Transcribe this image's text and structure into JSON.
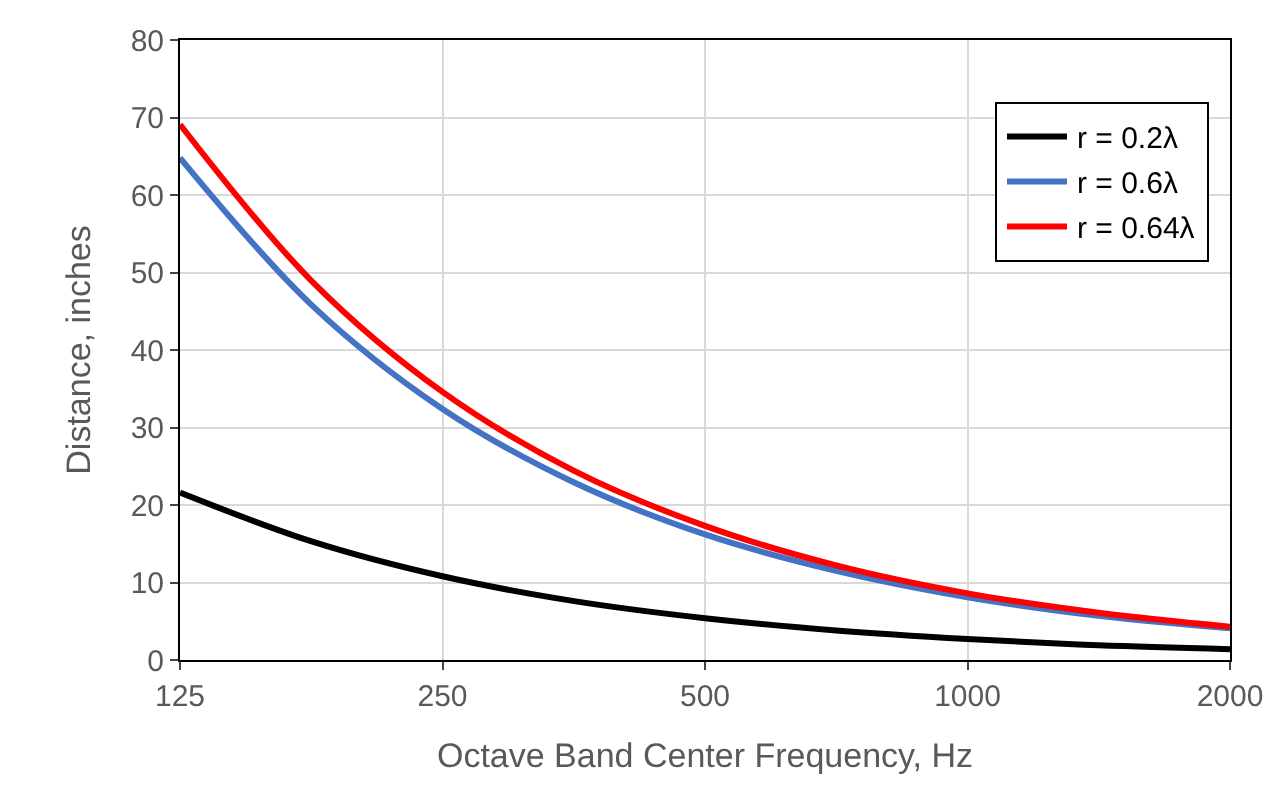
{
  "chart_data": {
    "type": "line",
    "xlabel": "Octave Band Center Frequency, Hz",
    "ylabel": "Distance, inches",
    "x": [
      125,
      177,
      250,
      354,
      500,
      707,
      1000,
      1414,
      2000
    ],
    "series": [
      {
        "name": "r = 0.2λ",
        "color": "#000000",
        "values": [
          21.6,
          15.3,
          10.8,
          7.6,
          5.4,
          3.8,
          2.7,
          1.9,
          1.4
        ]
      },
      {
        "name": "r = 0.6λ",
        "color": "#4472c4",
        "values": [
          64.8,
          45.8,
          32.4,
          22.9,
          16.2,
          11.5,
          8.1,
          5.7,
          4.1
        ]
      },
      {
        "name": "r = 0.64λ",
        "color": "#ff0000",
        "values": [
          69.1,
          48.9,
          34.6,
          24.4,
          17.3,
          12.2,
          8.6,
          6.1,
          4.3
        ]
      }
    ],
    "log": "x",
    "xlim": [
      125,
      2000
    ],
    "xticks": [
      125,
      250,
      500,
      1000,
      2000
    ],
    "ylim": [
      0,
      80
    ],
    "yticks": [
      0,
      10,
      20,
      30,
      40,
      50,
      60,
      70,
      80
    ],
    "grid": true,
    "legend": "top right",
    "marker": "none",
    "line_style": "solid"
  }
}
